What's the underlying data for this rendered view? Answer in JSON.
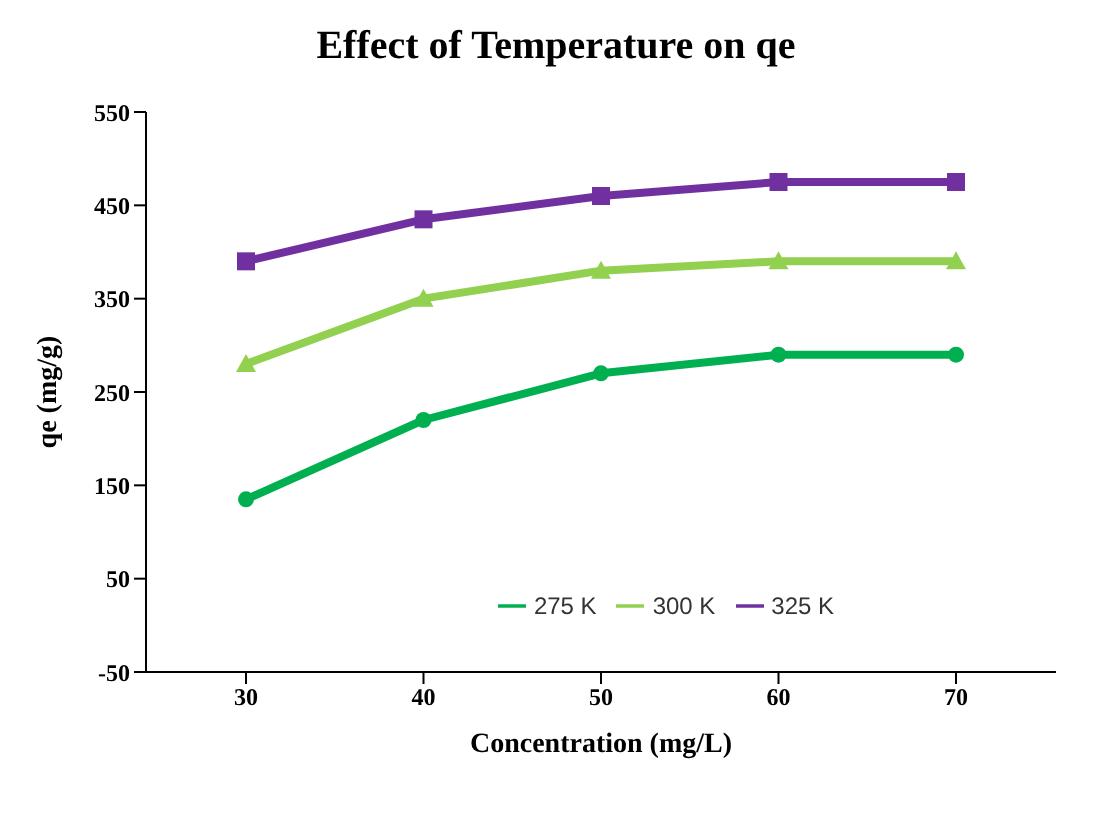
{
  "chart_data": {
    "type": "line",
    "title": "Effect of Temperature on qe",
    "xlabel": "Concentration (mg/L)",
    "ylabel": "qe (mg/g)",
    "categories": [
      "30",
      "40",
      "50",
      "60",
      "70"
    ],
    "series": [
      {
        "name": "275 K",
        "color": "#00b050",
        "marker": "circle",
        "values": [
          135,
          220,
          270,
          290,
          290
        ]
      },
      {
        "name": "300 K",
        "color": "#92d050",
        "marker": "triangle",
        "values": [
          280,
          350,
          380,
          390,
          390
        ]
      },
      {
        "name": "325 K",
        "color": "#7030a0",
        "marker": "square",
        "values": [
          390,
          435,
          460,
          475,
          475
        ]
      }
    ],
    "ylim": [
      -50,
      550
    ],
    "yticks": [
      -50,
      50,
      150,
      250,
      350,
      450,
      550
    ],
    "legend": "bottom",
    "line_style": "solid"
  }
}
